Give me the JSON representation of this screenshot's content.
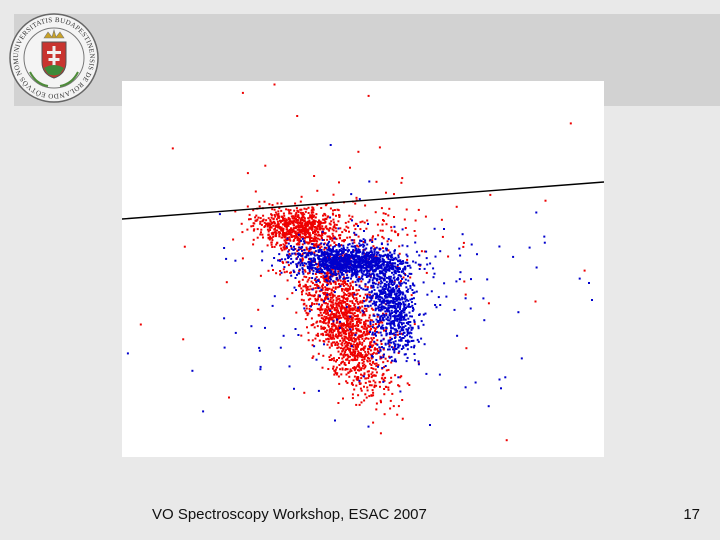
{
  "slide": {
    "footer": "VO Spectroscopy Workshop, ESAC 2007",
    "page_number": "17"
  },
  "logo": {
    "icon": "university-seal-icon",
    "seal_text": "UNIVERSITATIS BUDAPESTINENSIS DE ROLANDO EÖTVÖS NOMINATAE"
  },
  "colors": {
    "series_red": "#ee0000",
    "series_blue": "#0000cc",
    "line": "#000000"
  }
}
